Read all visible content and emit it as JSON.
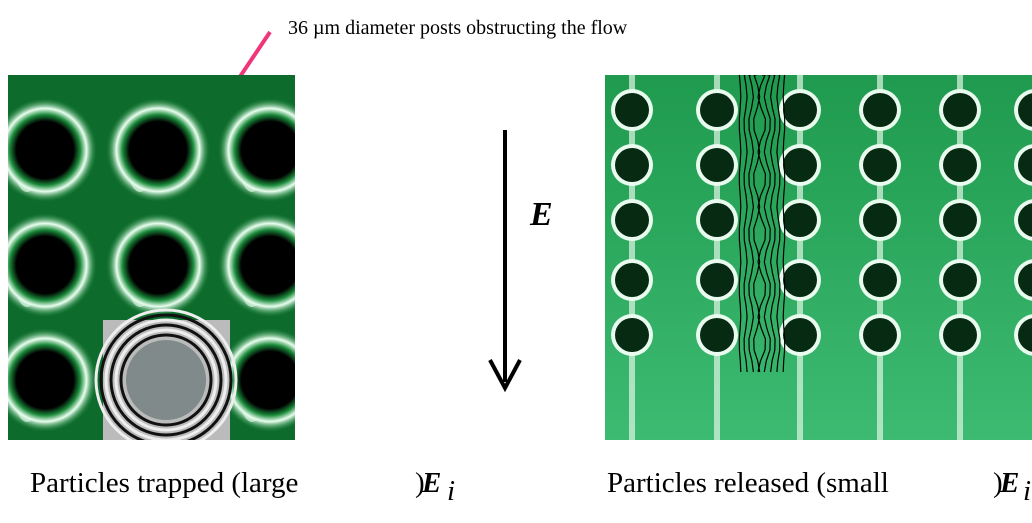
{
  "annotation": "36 µm diameter posts obstructing the flow",
  "field_label": "E",
  "left_caption": {
    "text": "Particles trapped (large",
    "paren": ")",
    "symbol": "E",
    "subscript": "i"
  },
  "right_caption": {
    "text": "Particles released  (small",
    "paren": ")",
    "symbol": "E",
    "subscript": "i"
  }
}
